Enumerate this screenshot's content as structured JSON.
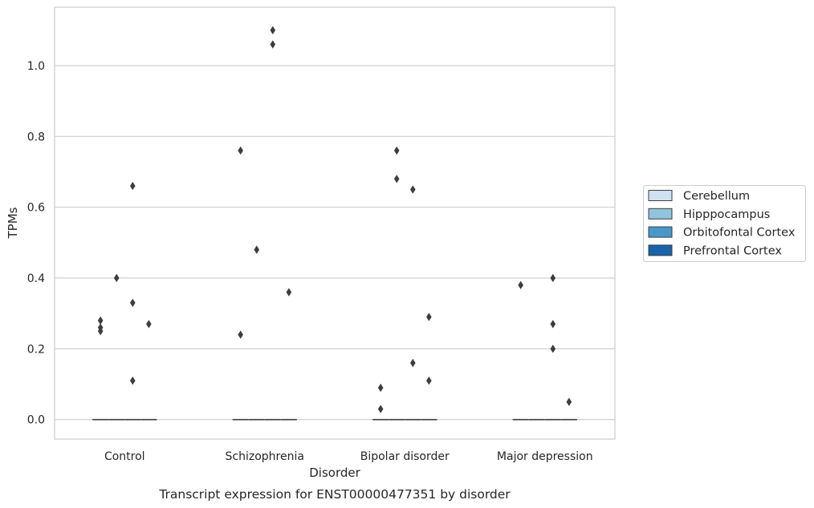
{
  "chart_data": {
    "type": "boxplot",
    "caption": "Transcript expression for ENST00000477351 by disorder",
    "xlabel": "Disorder",
    "ylabel": "TPMs",
    "ylim": [
      -0.055,
      1.165
    ],
    "yticks": [
      0.0,
      0.2,
      0.4,
      0.6,
      0.8,
      1.0
    ],
    "ytick_labels": [
      "0.0",
      "0.2",
      "0.4",
      "0.6",
      "0.8",
      "1.0"
    ],
    "grid": "horizontal",
    "legend_position": "right",
    "categories": [
      "Control",
      "Schizophrenia",
      "Bipolar disorder",
      "Major depression"
    ],
    "series": [
      {
        "name": "Cerebellum",
        "color": "#cfe1f2"
      },
      {
        "name": "Hipppocampus",
        "color": "#93c4de"
      },
      {
        "name": "Orbitofontal Cortex",
        "color": "#4a98c9"
      },
      {
        "name": "Prefrontal Cortex",
        "color": "#1764ab"
      }
    ],
    "boxes": [
      {
        "category": "Control",
        "series": "Cerebellum",
        "q1": 0,
        "median": 0,
        "q3": 0,
        "outliers": [
          0.25,
          0.26,
          0.28
        ]
      },
      {
        "category": "Control",
        "series": "Hipppocampus",
        "q1": 0,
        "median": 0,
        "q3": 0,
        "outliers": [
          0.4
        ]
      },
      {
        "category": "Control",
        "series": "Orbitofontal Cortex",
        "q1": 0,
        "median": 0,
        "q3": 0,
        "outliers": [
          0.11,
          0.33,
          0.66
        ]
      },
      {
        "category": "Control",
        "series": "Prefrontal Cortex",
        "q1": 0,
        "median": 0,
        "q3": 0,
        "outliers": [
          0.27
        ]
      },
      {
        "category": "Schizophrenia",
        "series": "Cerebellum",
        "q1": 0,
        "median": 0,
        "q3": 0,
        "outliers": [
          0.24,
          0.76
        ]
      },
      {
        "category": "Schizophrenia",
        "series": "Hipppocampus",
        "q1": 0,
        "median": 0,
        "q3": 0,
        "outliers": [
          0.48
        ]
      },
      {
        "category": "Schizophrenia",
        "series": "Orbitofontal Cortex",
        "q1": 0,
        "median": 0,
        "q3": 0,
        "outliers": [
          1.06,
          1.1
        ]
      },
      {
        "category": "Schizophrenia",
        "series": "Prefrontal Cortex",
        "q1": 0,
        "median": 0,
        "q3": 0,
        "outliers": [
          0.36
        ]
      },
      {
        "category": "Bipolar disorder",
        "series": "Cerebellum",
        "q1": 0,
        "median": 0,
        "q3": 0,
        "outliers": [
          0.03,
          0.09
        ]
      },
      {
        "category": "Bipolar disorder",
        "series": "Hipppocampus",
        "q1": 0,
        "median": 0,
        "q3": 0,
        "outliers": [
          0.68,
          0.76
        ]
      },
      {
        "category": "Bipolar disorder",
        "series": "Orbitofontal Cortex",
        "q1": 0,
        "median": 0,
        "q3": 0,
        "outliers": [
          0.16,
          0.65
        ]
      },
      {
        "category": "Bipolar disorder",
        "series": "Prefrontal Cortex",
        "q1": 0,
        "median": 0,
        "q3": 0,
        "outliers": [
          0.11,
          0.29
        ]
      },
      {
        "category": "Major depression",
        "series": "Cerebellum",
        "q1": 0,
        "median": 0,
        "q3": 0,
        "outliers": [
          0.38
        ]
      },
      {
        "category": "Major depression",
        "series": "Hipppocampus",
        "q1": 0,
        "median": 0,
        "q3": 0,
        "outliers": []
      },
      {
        "category": "Major depression",
        "series": "Orbitofontal Cortex",
        "q1": 0,
        "median": 0,
        "q3": 0,
        "outliers": [
          0.2,
          0.27,
          0.4
        ]
      },
      {
        "category": "Major depression",
        "series": "Prefrontal Cortex",
        "q1": 0,
        "median": 0,
        "q3": 0,
        "outliers": [
          0.05
        ]
      }
    ]
  }
}
